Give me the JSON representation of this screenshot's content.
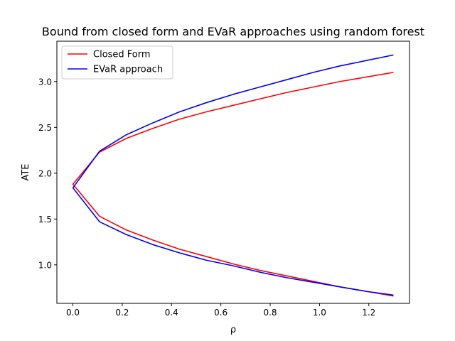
{
  "chart_data": {
    "type": "line",
    "title": "Bound from closed form and EVaR approaches using random forest",
    "xlabel": "ρ",
    "ylabel": "ATE",
    "xlim": [
      -0.065,
      1.365
    ],
    "ylim": [
      0.58,
      3.44
    ],
    "x_ticks": [
      0.0,
      0.2,
      0.4,
      0.6,
      0.8,
      1.0,
      1.2
    ],
    "x_tick_labels": [
      "0.0",
      "0.2",
      "0.4",
      "0.6",
      "0.8",
      "1.0",
      "1.2"
    ],
    "y_ticks": [
      1.0,
      1.5,
      2.0,
      2.5,
      3.0
    ],
    "y_tick_labels": [
      "1.0",
      "1.5",
      "2.0",
      "2.5",
      "3.0"
    ],
    "grid": false,
    "legend_position": "top-left",
    "x": [
      0.0,
      0.108,
      0.217,
      0.325,
      0.433,
      0.542,
      0.65,
      0.758,
      0.867,
      0.975,
      1.083,
      1.192,
      1.3
    ],
    "series": [
      {
        "name": "Closed Form",
        "color": "#ff0000",
        "upper": [
          1.88,
          2.23,
          2.38,
          2.49,
          2.59,
          2.67,
          2.74,
          2.81,
          2.88,
          2.94,
          3.0,
          3.05,
          3.1
        ],
        "lower": [
          1.88,
          1.53,
          1.38,
          1.27,
          1.17,
          1.09,
          1.01,
          0.94,
          0.88,
          0.82,
          0.76,
          0.71,
          0.66
        ]
      },
      {
        "name": "EVaR approach",
        "color": "#0000ff",
        "upper": [
          1.84,
          2.24,
          2.42,
          2.55,
          2.67,
          2.77,
          2.86,
          2.94,
          3.02,
          3.1,
          3.17,
          3.23,
          3.29
        ],
        "lower": [
          1.84,
          1.47,
          1.33,
          1.22,
          1.13,
          1.05,
          0.99,
          0.92,
          0.86,
          0.81,
          0.76,
          0.71,
          0.67
        ]
      }
    ]
  }
}
